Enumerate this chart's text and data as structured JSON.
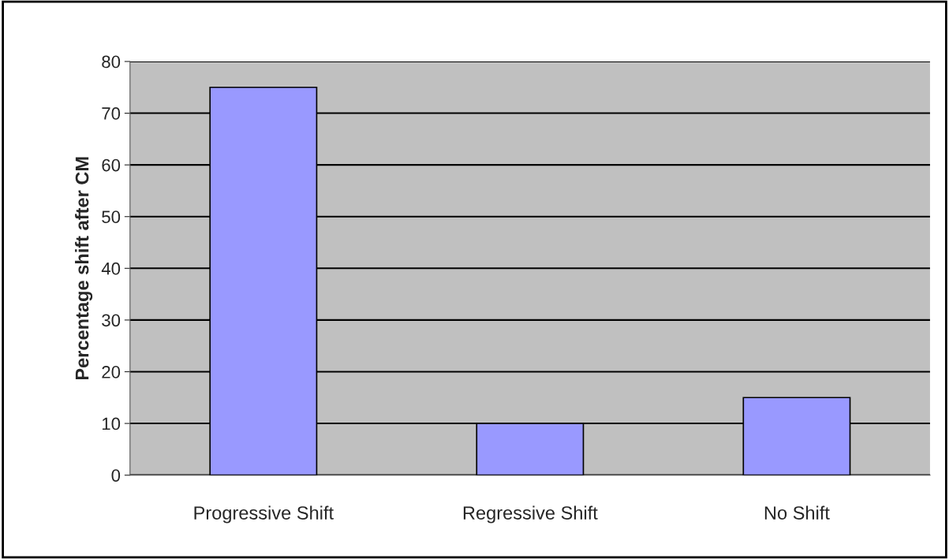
{
  "chart_data": {
    "type": "bar",
    "ylabel": "Percentage shift after CM",
    "categories": [
      "Progressive Shift",
      "Regressive Shift",
      "No Shift"
    ],
    "values": [
      75,
      10,
      15
    ],
    "color": "#9999ff",
    "ylim": [
      0,
      80
    ],
    "yticks": [
      0,
      10,
      20,
      30,
      40,
      50,
      60,
      70,
      80
    ],
    "grid": "y",
    "legend": false
  }
}
